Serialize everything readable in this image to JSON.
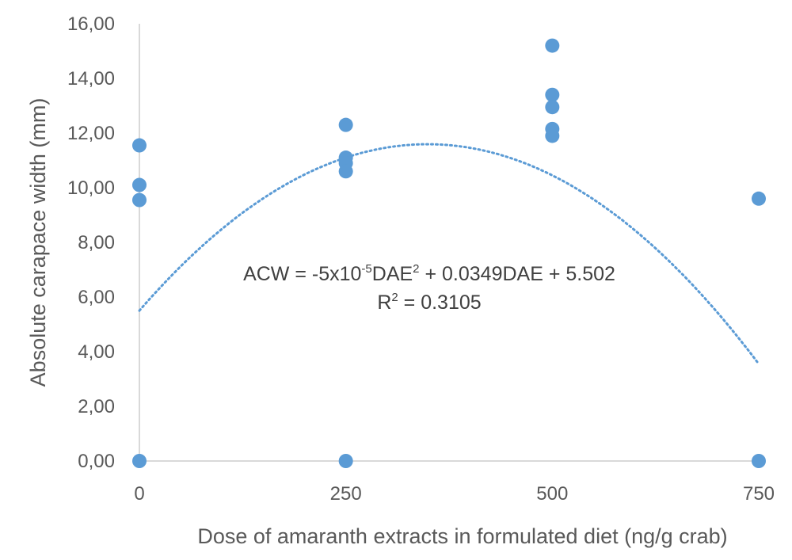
{
  "chart_data": {
    "type": "scatter",
    "title": "",
    "xlabel": "Dose of amaranth extracts in formulated diet (ng/g crab)",
    "ylabel": "Absolute carapace width (mm)",
    "xlim": [
      0,
      750
    ],
    "ylim": [
      0,
      16
    ],
    "x_ticks": [
      "0",
      "250",
      "500",
      "750"
    ],
    "y_ticks": [
      "0,00",
      "2,00",
      "4,00",
      "6,00",
      "8,00",
      "10,00",
      "12,00",
      "14,00",
      "16,00"
    ],
    "grid": false,
    "marker_color": "#5B9BD5",
    "trendline_color": "#5B9BD5",
    "points": [
      {
        "x": 0,
        "y": 11.55
      },
      {
        "x": 0,
        "y": 10.1
      },
      {
        "x": 0,
        "y": 9.55
      },
      {
        "x": 0,
        "y": 0
      },
      {
        "x": 250,
        "y": 12.3
      },
      {
        "x": 250,
        "y": 11.1
      },
      {
        "x": 250,
        "y": 10.9
      },
      {
        "x": 250,
        "y": 10.6
      },
      {
        "x": 250,
        "y": 0
      },
      {
        "x": 500,
        "y": 15.2
      },
      {
        "x": 500,
        "y": 13.4
      },
      {
        "x": 500,
        "y": 12.95
      },
      {
        "x": 500,
        "y": 12.15
      },
      {
        "x": 500,
        "y": 11.9
      },
      {
        "x": 750,
        "y": 9.6
      },
      {
        "x": 750,
        "y": 0
      }
    ],
    "trendline": {
      "type": "polynomial",
      "coefficients": [
        -5e-05,
        0.0349,
        5.502
      ],
      "equation": {
        "lhs": "ACW = -5x10",
        "exp1": "-5",
        "mid": "DAE",
        "exp2": "2",
        "rest": " + 0.0349DAE + 5.502"
      },
      "r2": {
        "r": "R",
        "exp": "2",
        "rest": " = 0.3105"
      }
    }
  }
}
